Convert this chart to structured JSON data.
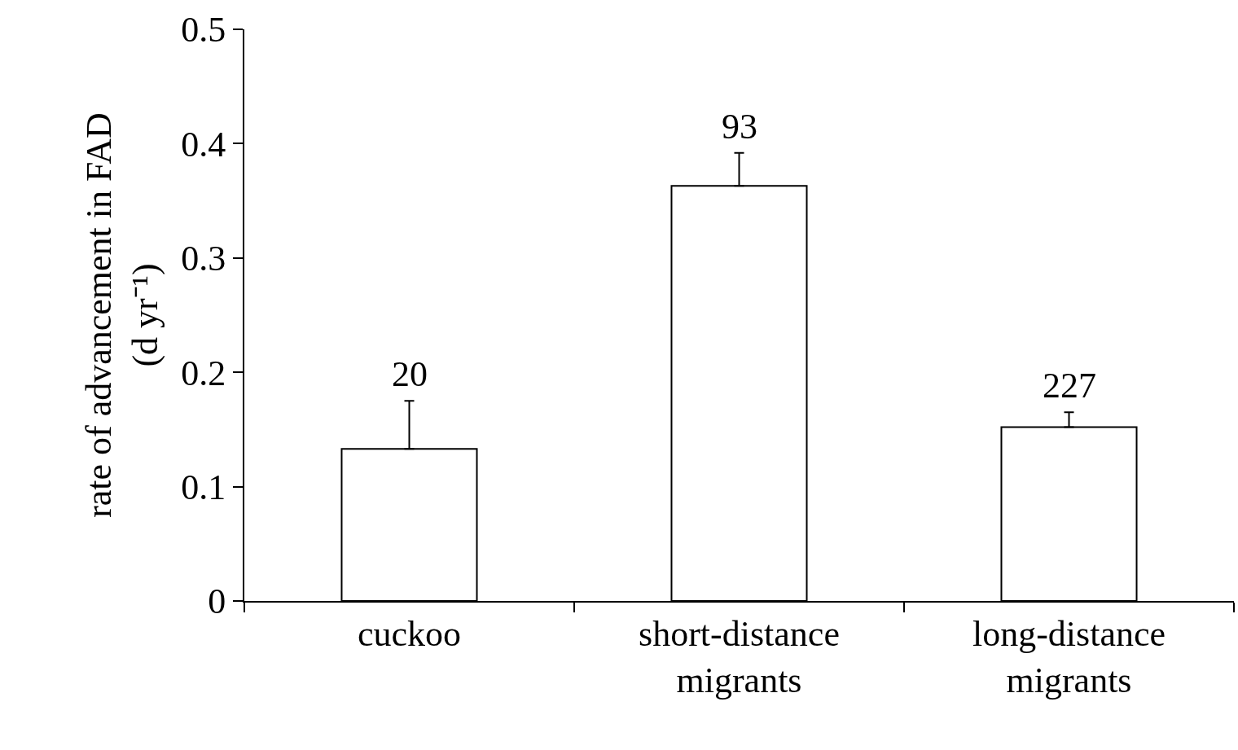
{
  "chart_data": {
    "type": "bar",
    "ylabel": "rate of advancement in FAD\n(d yr⁻¹)",
    "categories": [
      "cuckoo",
      "short-distance\nmigrants",
      "long-distance\nmigrants"
    ],
    "values": [
      0.133,
      0.363,
      0.152
    ],
    "errors": [
      [
        0.133,
        0.175
      ],
      [
        0.363,
        0.392
      ],
      [
        0.152,
        0.165
      ]
    ],
    "color": "#ffffff",
    "ylim": [
      0,
      0.5
    ],
    "yticks": [
      0,
      0.1,
      0.2,
      0.3,
      0.4,
      0.5
    ],
    "annotations": [
      "20",
      "93",
      "227"
    ]
  }
}
